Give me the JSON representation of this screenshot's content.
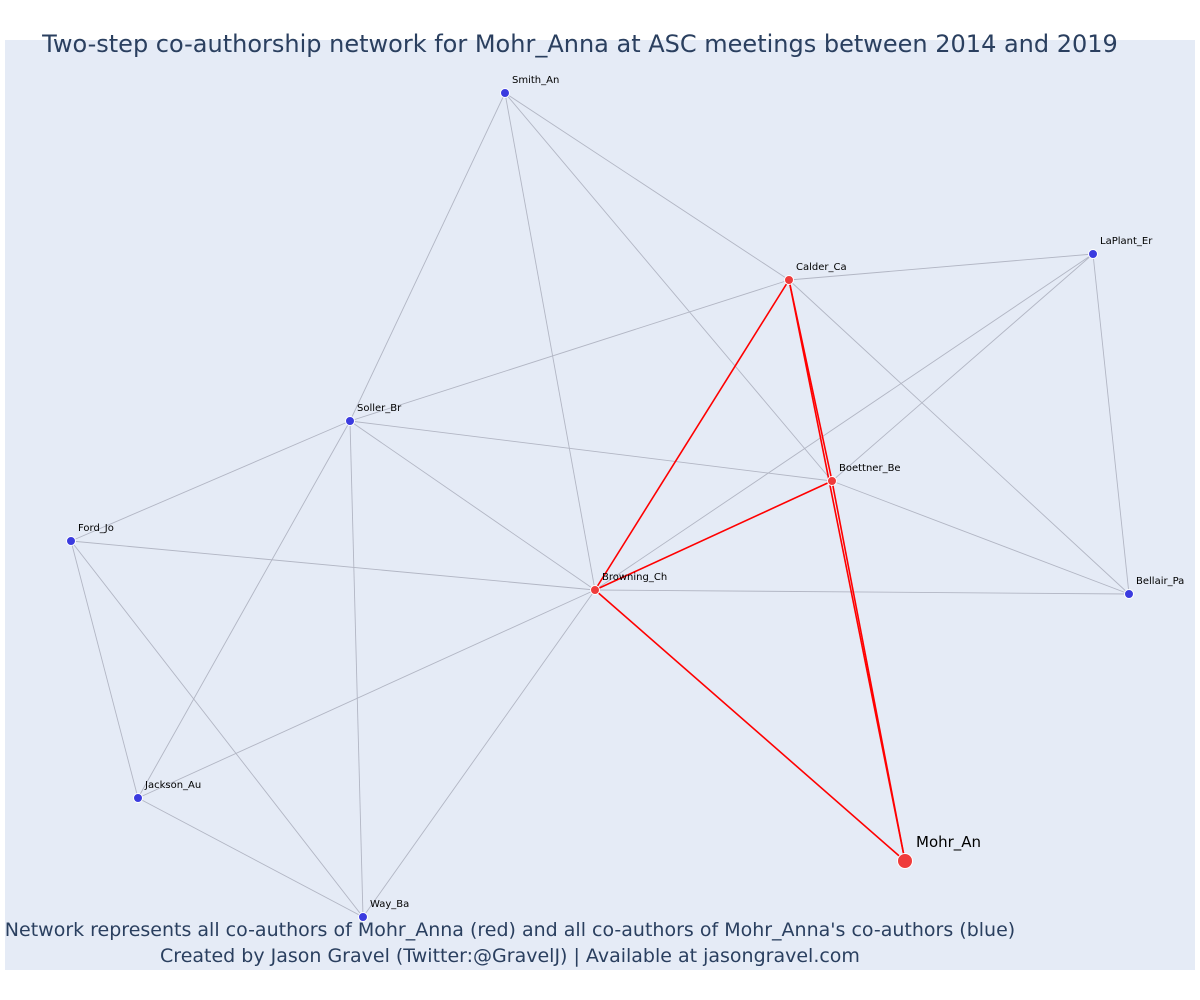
{
  "title": "Two-step co-authorship network for Mohr_Anna at ASC meetings between 2014 and 2019",
  "caption_line1": "Network represents all co-authors of Mohr_Anna (red) and all co-authors of Mohr_Anna's co-authors (blue)",
  "caption_line2": "Created by Jason Gravel (Twitter:@GravelJ) | Available at jasongravel.com",
  "colors": {
    "first_degree": "#ef3b3b",
    "second_degree": "#3b3bdf",
    "edge_first": "#ff0000",
    "edge_second": "#b2b6c4",
    "background": "#e5ebf6",
    "text": "#2a3f5f"
  },
  "nodes": [
    {
      "id": "Mohr_An",
      "label": "Mohr_An",
      "group": "focal"
    },
    {
      "id": "Calder_Ca",
      "label": "Calder_Ca",
      "group": "first"
    },
    {
      "id": "Boettner_Be",
      "label": "Boettner_Be",
      "group": "first"
    },
    {
      "id": "Browning_Ch",
      "label": "Browning_Ch",
      "group": "first"
    },
    {
      "id": "Smith_An",
      "label": "Smith_An",
      "group": "second"
    },
    {
      "id": "LaPlant_Er",
      "label": "LaPlant_Er",
      "group": "second"
    },
    {
      "id": "Soller_Br",
      "label": "Soller_Br",
      "group": "second"
    },
    {
      "id": "Ford_Jo",
      "label": "Ford_Jo",
      "group": "second"
    },
    {
      "id": "Bellair_Pa",
      "label": "Bellair_Pa",
      "group": "second"
    },
    {
      "id": "Jackson_Au",
      "label": "Jackson_Au",
      "group": "second"
    },
    {
      "id": "Way_Ba",
      "label": "Way_Ba",
      "group": "second"
    }
  ],
  "edges": [
    {
      "source": "Mohr_An",
      "target": "Calder_Ca",
      "group": "first"
    },
    {
      "source": "Mohr_An",
      "target": "Boettner_Be",
      "group": "first"
    },
    {
      "source": "Mohr_An",
      "target": "Browning_Ch",
      "group": "first"
    },
    {
      "source": "Calder_Ca",
      "target": "Boettner_Be",
      "group": "first"
    },
    {
      "source": "Calder_Ca",
      "target": "Browning_Ch",
      "group": "first"
    },
    {
      "source": "Boettner_Be",
      "target": "Browning_Ch",
      "group": "first"
    },
    {
      "source": "Smith_An",
      "target": "Calder_Ca",
      "group": "second"
    },
    {
      "source": "Smith_An",
      "target": "Boettner_Be",
      "group": "second"
    },
    {
      "source": "Smith_An",
      "target": "Browning_Ch",
      "group": "second"
    },
    {
      "source": "Smith_An",
      "target": "Soller_Br",
      "group": "second"
    },
    {
      "source": "Calder_Ca",
      "target": "LaPlant_Er",
      "group": "second"
    },
    {
      "source": "Calder_Ca",
      "target": "Soller_Br",
      "group": "second"
    },
    {
      "source": "Calder_Ca",
      "target": "Bellair_Pa",
      "group": "second"
    },
    {
      "source": "LaPlant_Er",
      "target": "Boettner_Be",
      "group": "second"
    },
    {
      "source": "LaPlant_Er",
      "target": "Browning_Ch",
      "group": "second"
    },
    {
      "source": "LaPlant_Er",
      "target": "Bellair_Pa",
      "group": "second"
    },
    {
      "source": "Soller_Br",
      "target": "Boettner_Be",
      "group": "second"
    },
    {
      "source": "Soller_Br",
      "target": "Browning_Ch",
      "group": "second"
    },
    {
      "source": "Soller_Br",
      "target": "Ford_Jo",
      "group": "second"
    },
    {
      "source": "Soller_Br",
      "target": "Jackson_Au",
      "group": "second"
    },
    {
      "source": "Soller_Br",
      "target": "Way_Ba",
      "group": "second"
    },
    {
      "source": "Boettner_Be",
      "target": "Bellair_Pa",
      "group": "second"
    },
    {
      "source": "Ford_Jo",
      "target": "Browning_Ch",
      "group": "second"
    },
    {
      "source": "Ford_Jo",
      "target": "Jackson_Au",
      "group": "second"
    },
    {
      "source": "Ford_Jo",
      "target": "Way_Ba",
      "group": "second"
    },
    {
      "source": "Browning_Ch",
      "target": "Bellair_Pa",
      "group": "second"
    },
    {
      "source": "Browning_Ch",
      "target": "Jackson_Au",
      "group": "second"
    },
    {
      "source": "Browning_Ch",
      "target": "Way_Ba",
      "group": "second"
    },
    {
      "source": "Jackson_Au",
      "target": "Way_Ba",
      "group": "second"
    }
  ]
}
